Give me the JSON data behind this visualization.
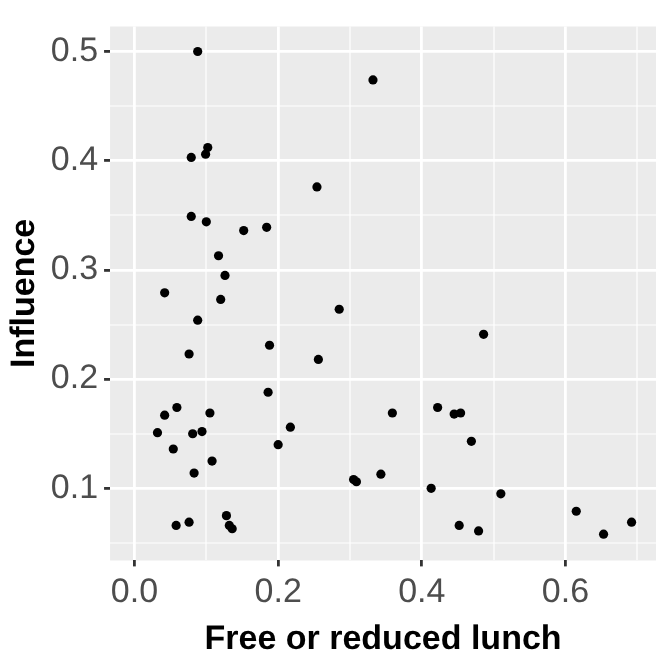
{
  "chart_data": {
    "type": "scatter",
    "xlabel": "Free or reduced lunch",
    "ylabel": "Influence",
    "xlim": [
      -0.034,
      0.726
    ],
    "ylim": [
      0.034,
      0.523
    ],
    "xticks": [
      {
        "value": 0,
        "label": "0.0"
      },
      {
        "value": 0.1,
        "label": null
      },
      {
        "value": 0.2,
        "label": "0.2"
      },
      {
        "value": 0.3,
        "label": null
      },
      {
        "value": 0.4,
        "label": "0.4"
      },
      {
        "value": 0.5,
        "label": null
      },
      {
        "value": 0.6,
        "label": "0.6"
      },
      {
        "value": 0.7,
        "label": null
      }
    ],
    "yticks": [
      {
        "value": 0.05,
        "label": null
      },
      {
        "value": 0.1,
        "label": "0.1"
      },
      {
        "value": 0.15,
        "label": null
      },
      {
        "value": 0.2,
        "label": "0.2"
      },
      {
        "value": 0.25,
        "label": null
      },
      {
        "value": 0.3,
        "label": "0.3"
      },
      {
        "value": 0.35,
        "label": null
      },
      {
        "value": 0.4,
        "label": "0.4"
      },
      {
        "value": 0.45,
        "label": null
      },
      {
        "value": 0.5,
        "label": "0.5"
      }
    ],
    "grid": true,
    "marker": "circle",
    "series": [
      {
        "color": "#000000",
        "x": [
          0.088,
          0.079,
          0.099,
          0.102,
          0.254,
          0.079,
          0.1,
          0.152,
          0.184,
          0.117,
          0.126,
          0.042,
          0.12,
          0.285,
          0.332,
          0.088,
          0.076,
          0.188,
          0.256,
          0.186,
          0.059,
          0.042,
          0.105,
          0.032,
          0.081,
          0.094,
          0.217,
          0.054,
          0.2,
          0.108,
          0.083,
          0.305,
          0.309,
          0.058,
          0.076,
          0.128,
          0.132,
          0.136,
          0.486,
          0.359,
          0.422,
          0.445,
          0.454,
          0.469,
          0.343,
          0.413,
          0.51,
          0.615,
          0.452,
          0.479,
          0.692,
          0.653
        ],
        "values": [
          0.5,
          0.403,
          0.406,
          0.412,
          0.376,
          0.349,
          0.344,
          0.336,
          0.339,
          0.313,
          0.295,
          0.279,
          0.273,
          0.264,
          0.474,
          0.254,
          0.223,
          0.231,
          0.218,
          0.188,
          0.174,
          0.167,
          0.169,
          0.151,
          0.15,
          0.152,
          0.156,
          0.136,
          0.14,
          0.125,
          0.114,
          0.108,
          0.106,
          0.066,
          0.069,
          0.075,
          0.066,
          0.063,
          0.241,
          0.169,
          0.174,
          0.168,
          0.169,
          0.143,
          0.113,
          0.1,
          0.095,
          0.079,
          0.066,
          0.061,
          0.069,
          0.058
        ]
      }
    ]
  }
}
